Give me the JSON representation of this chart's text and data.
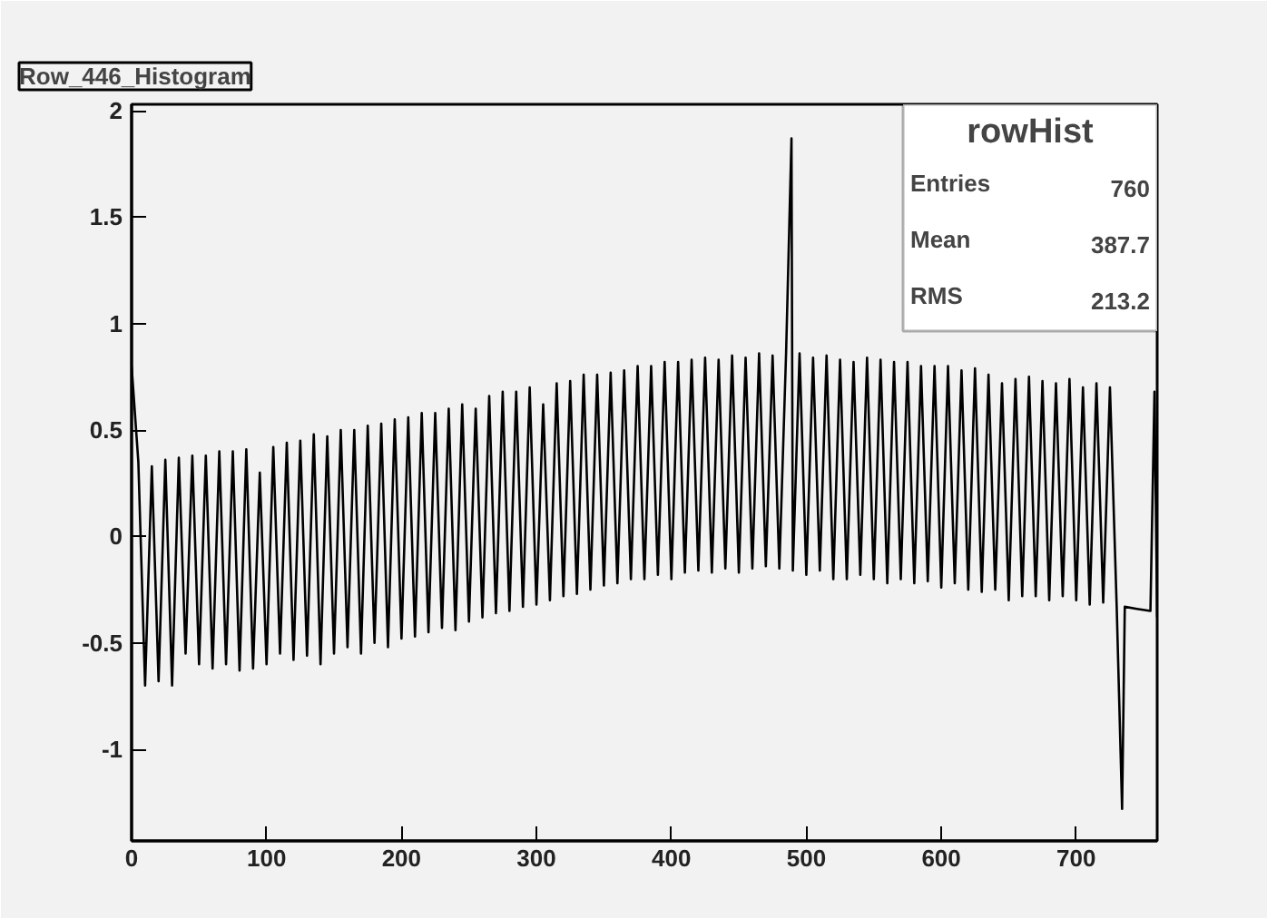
{
  "chart_data": {
    "type": "line",
    "title": "Row_446_Histogram",
    "annotations": [
      "rowHist",
      "Entries 760",
      "Mean 387.7",
      "RMS 213.2"
    ],
    "x": [
      0,
      5,
      10,
      15,
      20,
      25,
      30,
      35,
      40,
      45,
      50,
      55,
      60,
      65,
      70,
      75,
      80,
      85,
      90,
      95,
      100,
      105,
      110,
      115,
      120,
      125,
      130,
      135,
      140,
      145,
      150,
      155,
      160,
      165,
      170,
      175,
      180,
      185,
      190,
      195,
      200,
      205,
      210,
      215,
      220,
      225,
      230,
      235,
      240,
      245,
      250,
      255,
      260,
      265,
      270,
      275,
      280,
      285,
      290,
      295,
      300,
      305,
      310,
      315,
      320,
      325,
      330,
      335,
      340,
      345,
      350,
      355,
      360,
      365,
      370,
      375,
      380,
      385,
      390,
      395,
      400,
      405,
      410,
      415,
      420,
      425,
      430,
      435,
      440,
      445,
      450,
      455,
      460,
      465,
      470,
      475,
      480,
      485,
      489,
      490,
      495,
      500,
      505,
      510,
      515,
      520,
      525,
      530,
      535,
      540,
      545,
      550,
      555,
      560,
      565,
      570,
      575,
      580,
      585,
      590,
      595,
      600,
      605,
      610,
      615,
      620,
      625,
      630,
      635,
      640,
      645,
      650,
      655,
      660,
      665,
      670,
      675,
      680,
      685,
      690,
      695,
      700,
      705,
      710,
      715,
      720,
      725,
      730,
      734,
      736,
      745,
      755,
      758,
      760
    ],
    "series": [
      {
        "color": "#000000",
        "values": [
          0.8,
          0.35,
          -0.7,
          0.33,
          -0.68,
          0.36,
          -0.7,
          0.37,
          -0.55,
          0.38,
          -0.6,
          0.38,
          -0.62,
          0.4,
          -0.6,
          0.4,
          -0.63,
          0.41,
          -0.62,
          0.3,
          -0.6,
          0.42,
          -0.55,
          0.44,
          -0.58,
          0.45,
          -0.56,
          0.48,
          -0.6,
          0.47,
          -0.55,
          0.5,
          -0.52,
          0.5,
          -0.55,
          0.52,
          -0.5,
          0.53,
          -0.52,
          0.55,
          -0.48,
          0.56,
          -0.47,
          0.58,
          -0.45,
          0.58,
          -0.43,
          0.6,
          -0.44,
          0.62,
          -0.4,
          0.6,
          -0.38,
          0.66,
          -0.36,
          0.68,
          -0.35,
          0.68,
          -0.33,
          0.7,
          -0.32,
          0.62,
          -0.3,
          0.72,
          -0.28,
          0.73,
          -0.27,
          0.76,
          -0.25,
          0.76,
          -0.23,
          0.77,
          -0.22,
          0.78,
          -0.2,
          0.8,
          -0.2,
          0.8,
          -0.18,
          0.82,
          -0.2,
          0.82,
          -0.17,
          0.83,
          -0.16,
          0.84,
          -0.17,
          0.83,
          -0.15,
          0.85,
          -0.17,
          0.84,
          -0.15,
          0.86,
          -0.14,
          0.85,
          -0.15,
          0.86,
          1.87,
          -0.16,
          0.86,
          -0.18,
          0.84,
          -0.16,
          0.85,
          -0.2,
          0.83,
          -0.2,
          0.82,
          -0.18,
          0.84,
          -0.2,
          0.83,
          -0.22,
          0.82,
          -0.2,
          0.82,
          -0.22,
          0.8,
          -0.21,
          0.8,
          -0.24,
          0.8,
          -0.22,
          0.78,
          -0.25,
          0.79,
          -0.26,
          0.76,
          -0.25,
          0.72,
          -0.3,
          0.74,
          -0.28,
          0.75,
          -0.28,
          0.73,
          -0.3,
          0.72,
          -0.28,
          0.74,
          -0.3,
          0.7,
          -0.32,
          0.72,
          -0.31,
          0.7,
          -0.33,
          -1.28,
          -0.33,
          -0.34,
          -0.35,
          0.68,
          -0.38
        ]
      }
    ],
    "xlim": [
      0,
      760
    ],
    "ylim": [
      -1.43,
      2.03
    ],
    "xticks": [
      0,
      100,
      200,
      300,
      400,
      500,
      600,
      700
    ],
    "yticks": [
      -1,
      -0.5,
      0,
      0.5,
      1,
      1.5,
      2
    ],
    "grid": false
  }
}
